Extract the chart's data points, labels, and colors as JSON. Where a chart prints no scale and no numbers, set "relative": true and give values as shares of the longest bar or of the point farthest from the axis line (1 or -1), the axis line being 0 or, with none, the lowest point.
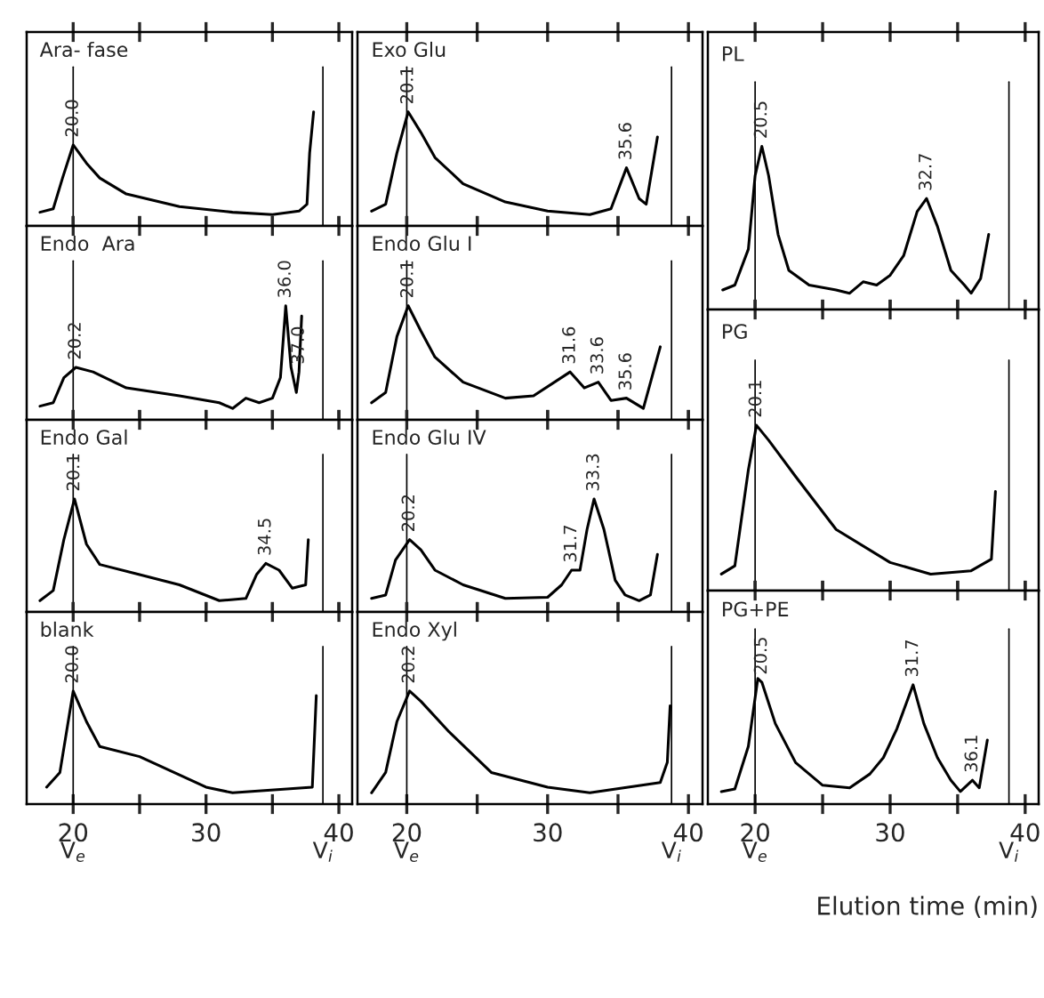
{
  "chart_data": [
    {
      "type": "line",
      "relative": true,
      "title": "Ara- fase",
      "xlim": [
        16.5,
        41
      ],
      "xticks": [
        {
          "value": 20,
          "label": null
        },
        {
          "value": 25,
          "label": null
        },
        {
          "value": 30,
          "label": null
        },
        {
          "value": 35,
          "label": null
        },
        {
          "value": 40,
          "label": null
        }
      ],
      "tick_labels": false,
      "ref_lines": [
        {
          "axis": "x",
          "value": 20,
          "color": "#000000"
        },
        {
          "axis": "x",
          "value": 38.8,
          "color": "#000000"
        }
      ],
      "annotations": [
        {
          "text": "20.0",
          "x": 20,
          "y": 0.71
        }
      ],
      "x": [
        17.5,
        18.5,
        19.2,
        20,
        21,
        22,
        24,
        28,
        32,
        35,
        37,
        37.6,
        37.8,
        38.1
      ],
      "series": [
        {
          "color": "#000000",
          "values": [
            0.12,
            0.15,
            0.42,
            0.71,
            0.55,
            0.42,
            0.28,
            0.17,
            0.12,
            0.1,
            0.13,
            0.19,
            0.64,
            1.0
          ]
        }
      ]
    },
    {
      "type": "line",
      "relative": true,
      "title": "Endo  Ara",
      "xlim": [
        16.5,
        41
      ],
      "xticks": [
        {
          "value": 20,
          "label": null
        },
        {
          "value": 25,
          "label": null
        },
        {
          "value": 30,
          "label": null
        },
        {
          "value": 35,
          "label": null
        },
        {
          "value": 40,
          "label": null
        }
      ],
      "tick_labels": false,
      "ref_lines": [
        {
          "axis": "x",
          "value": 20,
          "color": "#000000"
        },
        {
          "axis": "x",
          "value": 38.8,
          "color": "#000000"
        }
      ],
      "annotations": [
        {
          "text": "20.2",
          "x": 20.2,
          "y": 0.46
        },
        {
          "text": "36.0",
          "x": 36.0,
          "y": 1.0
        },
        {
          "text": "37.0",
          "x": 37.0,
          "y": 0.42
        }
      ],
      "x": [
        17.5,
        18.5,
        19.3,
        20.2,
        21.5,
        24,
        28,
        31,
        32,
        33,
        34,
        35,
        35.6,
        36.0,
        36.4,
        36.8,
        37.0,
        37.2
      ],
      "series": [
        {
          "color": "#000000",
          "values": [
            0.12,
            0.15,
            0.37,
            0.46,
            0.42,
            0.28,
            0.21,
            0.15,
            0.1,
            0.19,
            0.15,
            0.19,
            0.37,
            1.0,
            0.46,
            0.24,
            0.42,
            0.91
          ]
        }
      ]
    },
    {
      "type": "line",
      "relative": true,
      "title": "Endo Gal",
      "xlim": [
        16.5,
        41
      ],
      "xticks": [
        {
          "value": 20,
          "label": null
        },
        {
          "value": 25,
          "label": null
        },
        {
          "value": 30,
          "label": null
        },
        {
          "value": 35,
          "label": null
        },
        {
          "value": 40,
          "label": null
        }
      ],
      "tick_labels": false,
      "ref_lines": [
        {
          "axis": "x",
          "value": 20,
          "color": "#000000"
        },
        {
          "axis": "x",
          "value": 38.8,
          "color": "#000000"
        }
      ],
      "annotations": [
        {
          "text": "20.1",
          "x": 20.1,
          "y": 1.0
        },
        {
          "text": "34.5",
          "x": 34.5,
          "y": 0.43
        }
      ],
      "x": [
        17.5,
        18.5,
        19.3,
        20.1,
        21,
        22,
        25,
        28,
        31,
        33,
        33.8,
        34.5,
        35.5,
        36.5,
        37.5,
        37.7
      ],
      "series": [
        {
          "color": "#000000",
          "values": [
            0.1,
            0.19,
            0.64,
            1.0,
            0.6,
            0.42,
            0.33,
            0.24,
            0.1,
            0.12,
            0.33,
            0.43,
            0.37,
            0.21,
            0.24,
            0.64
          ]
        }
      ]
    },
    {
      "type": "line",
      "relative": true,
      "title": "blank",
      "xlim": [
        16.5,
        41
      ],
      "xticks": [
        20,
        {
          "value": 25,
          "label": null
        },
        30,
        {
          "value": 35,
          "label": null
        },
        40
      ],
      "tick_labels": "x",
      "ref_lines": [
        {
          "axis": "x",
          "value": 20,
          "color": "#000000",
          "label": "V$_{e}$"
        },
        {
          "axis": "x",
          "value": 38.8,
          "color": "#000000",
          "label": "V$_{i}$"
        }
      ],
      "annotations": [
        {
          "text": "20.0",
          "x": 20,
          "y": 1.0
        }
      ],
      "x": [
        18,
        19,
        20,
        21,
        22,
        25,
        30,
        32,
        38,
        38.3
      ],
      "series": [
        {
          "color": "#000000",
          "values": [
            0.15,
            0.28,
            1.0,
            0.73,
            0.51,
            0.42,
            0.15,
            0.1,
            0.15,
            0.96
          ]
        }
      ]
    },
    {
      "type": "line",
      "relative": true,
      "title": "Exo Glu",
      "xlim": [
        16.5,
        41
      ],
      "xticks": [
        {
          "value": 20,
          "label": null
        },
        {
          "value": 25,
          "label": null
        },
        {
          "value": 30,
          "label": null
        },
        {
          "value": 35,
          "label": null
        },
        {
          "value": 40,
          "label": null
        }
      ],
      "tick_labels": false,
      "ref_lines": [
        {
          "axis": "x",
          "value": 20,
          "color": "#000000"
        },
        {
          "axis": "x",
          "value": 38.8,
          "color": "#000000"
        }
      ],
      "annotations": [
        {
          "text": "20.1",
          "x": 20.1,
          "y": 1.0
        },
        {
          "text": "35.6",
          "x": 35.6,
          "y": 0.51
        }
      ],
      "x": [
        17.5,
        18.5,
        19.3,
        20.1,
        21,
        22,
        24,
        27,
        30,
        33,
        34.5,
        35.6,
        36.5,
        37,
        37.8
      ],
      "series": [
        {
          "color": "#000000",
          "values": [
            0.13,
            0.19,
            0.64,
            1.0,
            0.82,
            0.6,
            0.37,
            0.21,
            0.13,
            0.1,
            0.15,
            0.51,
            0.24,
            0.19,
            0.78
          ]
        }
      ]
    },
    {
      "type": "line",
      "relative": true,
      "title": "Endo Glu I",
      "xlim": [
        16.5,
        41
      ],
      "xticks": [
        {
          "value": 20,
          "label": null
        },
        {
          "value": 25,
          "label": null
        },
        {
          "value": 30,
          "label": null
        },
        {
          "value": 35,
          "label": null
        },
        {
          "value": 40,
          "label": null
        }
      ],
      "tick_labels": false,
      "ref_lines": [
        {
          "axis": "x",
          "value": 20,
          "color": "#000000"
        },
        {
          "axis": "x",
          "value": 38.8,
          "color": "#000000"
        }
      ],
      "annotations": [
        {
          "text": "20.1",
          "x": 20.1,
          "y": 1.0
        },
        {
          "text": "31.6",
          "x": 31.6,
          "y": 0.42
        },
        {
          "text": "33.6",
          "x": 33.6,
          "y": 0.33
        },
        {
          "text": "35.6",
          "x": 35.6,
          "y": 0.19
        }
      ],
      "x": [
        17.5,
        18.5,
        19.3,
        20.1,
        21,
        22,
        24,
        27,
        29,
        31.6,
        32.6,
        33.6,
        34.5,
        35.6,
        36.8,
        38
      ],
      "series": [
        {
          "color": "#000000",
          "values": [
            0.15,
            0.24,
            0.73,
            1.0,
            0.78,
            0.55,
            0.33,
            0.19,
            0.21,
            0.42,
            0.28,
            0.33,
            0.17,
            0.19,
            0.1,
            0.64
          ]
        }
      ]
    },
    {
      "type": "line",
      "relative": true,
      "title": "Endo Glu IV",
      "xlim": [
        16.5,
        41
      ],
      "xticks": [
        {
          "value": 20,
          "label": null
        },
        {
          "value": 25,
          "label": null
        },
        {
          "value": 30,
          "label": null
        },
        {
          "value": 35,
          "label": null
        },
        {
          "value": 40,
          "label": null
        }
      ],
      "tick_labels": false,
      "ref_lines": [
        {
          "axis": "x",
          "value": 20,
          "color": "#000000"
        },
        {
          "axis": "x",
          "value": 38.8,
          "color": "#000000"
        }
      ],
      "annotations": [
        {
          "text": "20.2",
          "x": 20.2,
          "y": 0.64
        },
        {
          "text": "31.7",
          "x": 31.7,
          "y": 0.37
        },
        {
          "text": "33.3",
          "x": 33.3,
          "y": 1.0
        }
      ],
      "x": [
        17.5,
        18.5,
        19.2,
        20.2,
        21,
        22,
        24,
        27,
        30,
        31,
        31.7,
        32.3,
        32.8,
        33.3,
        34,
        34.8,
        35.5,
        36.5,
        37.3,
        37.8
      ],
      "series": [
        {
          "color": "#000000",
          "values": [
            0.12,
            0.15,
            0.46,
            0.64,
            0.55,
            0.37,
            0.24,
            0.12,
            0.13,
            0.24,
            0.37,
            0.37,
            0.73,
            1.0,
            0.73,
            0.28,
            0.15,
            0.1,
            0.15,
            0.51
          ]
        }
      ]
    },
    {
      "type": "line",
      "relative": true,
      "title": "Endo Xyl",
      "xlim": [
        16.5,
        41
      ],
      "xticks": [
        20,
        {
          "value": 25,
          "label": null
        },
        30,
        {
          "value": 35,
          "label": null
        },
        40
      ],
      "tick_labels": "x",
      "ref_lines": [
        {
          "axis": "x",
          "value": 20,
          "color": "#000000",
          "label": "V$_{e}$"
        },
        {
          "axis": "x",
          "value": 38.8,
          "color": "#000000",
          "label": "V$_{i}$"
        }
      ],
      "annotations": [
        {
          "text": "20.2",
          "x": 20.2,
          "y": 1.0
        }
      ],
      "x": [
        17.5,
        18.5,
        19.3,
        20.2,
        21,
        23,
        26,
        30,
        33,
        38,
        38.5,
        38.7
      ],
      "series": [
        {
          "color": "#000000",
          "values": [
            0.1,
            0.28,
            0.73,
            1.0,
            0.91,
            0.64,
            0.28,
            0.15,
            0.1,
            0.19,
            0.37,
            0.87
          ]
        }
      ]
    },
    {
      "type": "line",
      "relative": true,
      "title": "PL",
      "xlim": [
        16.5,
        41
      ],
      "xticks": [
        {
          "value": 20,
          "label": null
        },
        {
          "value": 25,
          "label": null
        },
        {
          "value": 30,
          "label": null
        },
        {
          "value": 35,
          "label": null
        },
        {
          "value": 40,
          "label": null
        }
      ],
      "tick_labels": false,
      "ref_lines": [
        {
          "axis": "x",
          "value": 20,
          "color": "#000000"
        },
        {
          "axis": "x",
          "value": 38.8,
          "color": "#000000"
        }
      ],
      "annotations": [
        {
          "text": "20.5",
          "x": 20.5,
          "y": 1.0
        },
        {
          "text": "32.7",
          "x": 32.7,
          "y": 0.68
        }
      ],
      "x": [
        17.6,
        18.5,
        19.5,
        20.0,
        20.5,
        21,
        21.7,
        22.5,
        24,
        26,
        27,
        28,
        29,
        30,
        31,
        32,
        32.7,
        33.5,
        34.5,
        35.5,
        36,
        36.7,
        37.3
      ],
      "series": [
        {
          "color": "#000000",
          "values": [
            0.12,
            0.15,
            0.37,
            0.82,
            1.0,
            0.82,
            0.46,
            0.24,
            0.15,
            0.12,
            0.1,
            0.17,
            0.15,
            0.21,
            0.33,
            0.6,
            0.68,
            0.51,
            0.24,
            0.15,
            0.1,
            0.19,
            0.46
          ]
        }
      ]
    },
    {
      "type": "line",
      "relative": true,
      "title": "PG",
      "xlim": [
        16.5,
        41
      ],
      "xticks": [
        {
          "value": 20,
          "label": null
        },
        {
          "value": 25,
          "label": null
        },
        {
          "value": 30,
          "label": null
        },
        {
          "value": 35,
          "label": null
        },
        {
          "value": 40,
          "label": null
        }
      ],
      "tick_labels": false,
      "ref_lines": [
        {
          "axis": "x",
          "value": 20,
          "color": "#000000"
        },
        {
          "axis": "x",
          "value": 38.8,
          "color": "#000000"
        }
      ],
      "annotations": [
        {
          "text": "20.1",
          "x": 20.1,
          "y": 1.0
        }
      ],
      "x": [
        17.5,
        18.5,
        19.5,
        20.1,
        21,
        23,
        26,
        30,
        33,
        36,
        37.5,
        37.8
      ],
      "series": [
        {
          "color": "#000000",
          "values": [
            0.1,
            0.15,
            0.73,
            1.0,
            0.91,
            0.69,
            0.37,
            0.17,
            0.1,
            0.12,
            0.19,
            0.6
          ]
        }
      ]
    },
    {
      "type": "line",
      "relative": true,
      "title": "PG+PE",
      "xlabel": "Elution time (min)",
      "xlim": [
        16.5,
        41
      ],
      "xticks": [
        20,
        {
          "value": 25,
          "label": null
        },
        30,
        {
          "value": 35,
          "label": null
        },
        40
      ],
      "tick_labels": "x",
      "ref_lines": [
        {
          "axis": "x",
          "value": 20,
          "color": "#000000",
          "label": "V$_{e}$"
        },
        {
          "axis": "x",
          "value": 38.8,
          "color": "#000000",
          "label": "V$_{i}$"
        }
      ],
      "annotations": [
        {
          "text": "20.5",
          "x": 20.5,
          "y": 0.97
        },
        {
          "text": "31.7",
          "x": 31.7,
          "y": 0.95
        },
        {
          "text": "36.1",
          "x": 36.1,
          "y": 0.19
        }
      ],
      "x": [
        17.5,
        18.5,
        19.5,
        20.2,
        20.5,
        21.5,
        23,
        25,
        27,
        28.5,
        29.5,
        30.5,
        31.7,
        32.5,
        33.5,
        34.5,
        35.2,
        36.1,
        36.6,
        37.2
      ],
      "series": [
        {
          "color": "#000000",
          "values": [
            0.1,
            0.12,
            0.46,
            1.0,
            0.97,
            0.64,
            0.33,
            0.15,
            0.13,
            0.24,
            0.37,
            0.6,
            0.95,
            0.64,
            0.37,
            0.19,
            0.1,
            0.19,
            0.13,
            0.51
          ]
        }
      ]
    }
  ]
}
